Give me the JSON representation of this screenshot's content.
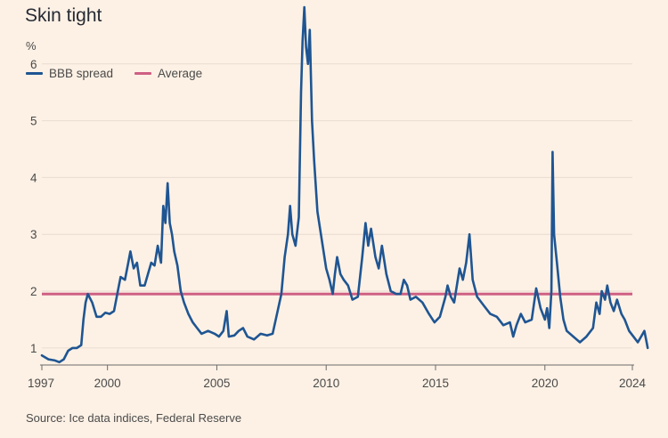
{
  "title": "Skin tight",
  "unit_label": "%",
  "source": "Source: Ice data indices, Federal Reserve",
  "colors": {
    "background": "#fdf1e5",
    "bbb_spread": "#1f5592",
    "average": "#cf5f83",
    "grid": "#e8dcd0"
  },
  "legend": [
    {
      "label": "BBB spread",
      "color": "#1f5592"
    },
    {
      "label": "Average",
      "color": "#cf5f83"
    }
  ],
  "chart_data": {
    "type": "line",
    "title": "Skin tight",
    "ylabel": "%",
    "xlabel": "",
    "ylim": [
      0.7,
      7
    ],
    "xlim": [
      1997,
      2024
    ],
    "yticks": [
      1,
      2,
      3,
      4,
      5,
      6
    ],
    "xticks": [
      1997,
      2000,
      2005,
      2010,
      2015,
      2020,
      2024
    ],
    "grid": true,
    "legend_position": "top-left",
    "average": 1.95,
    "series": [
      {
        "name": "BBB spread",
        "points": [
          [
            1997.0,
            0.87
          ],
          [
            1997.3,
            0.8
          ],
          [
            1997.6,
            0.78
          ],
          [
            1997.8,
            0.75
          ],
          [
            1998.0,
            0.8
          ],
          [
            1998.2,
            0.95
          ],
          [
            1998.4,
            1.0
          ],
          [
            1998.6,
            1.0
          ],
          [
            1998.8,
            1.05
          ],
          [
            1998.9,
            1.5
          ],
          [
            1999.0,
            1.8
          ],
          [
            1999.1,
            1.95
          ],
          [
            1999.3,
            1.8
          ],
          [
            1999.5,
            1.55
          ],
          [
            1999.7,
            1.55
          ],
          [
            1999.9,
            1.62
          ],
          [
            2000.1,
            1.6
          ],
          [
            2000.3,
            1.65
          ],
          [
            2000.5,
            2.05
          ],
          [
            2000.6,
            2.25
          ],
          [
            2000.8,
            2.2
          ],
          [
            2000.95,
            2.5
          ],
          [
            2001.05,
            2.7
          ],
          [
            2001.2,
            2.4
          ],
          [
            2001.35,
            2.5
          ],
          [
            2001.5,
            2.1
          ],
          [
            2001.7,
            2.1
          ],
          [
            2001.85,
            2.3
          ],
          [
            2002.0,
            2.5
          ],
          [
            2002.15,
            2.45
          ],
          [
            2002.3,
            2.8
          ],
          [
            2002.45,
            2.5
          ],
          [
            2002.55,
            3.5
          ],
          [
            2002.65,
            3.2
          ],
          [
            2002.75,
            3.9
          ],
          [
            2002.85,
            3.2
          ],
          [
            2002.95,
            3.0
          ],
          [
            2003.05,
            2.7
          ],
          [
            2003.2,
            2.45
          ],
          [
            2003.35,
            2.0
          ],
          [
            2003.5,
            1.8
          ],
          [
            2003.7,
            1.6
          ],
          [
            2003.9,
            1.45
          ],
          [
            2004.1,
            1.35
          ],
          [
            2004.3,
            1.25
          ],
          [
            2004.6,
            1.3
          ],
          [
            2004.9,
            1.25
          ],
          [
            2005.1,
            1.2
          ],
          [
            2005.3,
            1.3
          ],
          [
            2005.45,
            1.65
          ],
          [
            2005.55,
            1.2
          ],
          [
            2005.8,
            1.22
          ],
          [
            2006.0,
            1.3
          ],
          [
            2006.2,
            1.35
          ],
          [
            2006.4,
            1.2
          ],
          [
            2006.7,
            1.15
          ],
          [
            2007.0,
            1.25
          ],
          [
            2007.3,
            1.22
          ],
          [
            2007.55,
            1.25
          ],
          [
            2007.75,
            1.6
          ],
          [
            2007.95,
            1.95
          ],
          [
            2008.1,
            2.6
          ],
          [
            2008.25,
            3.0
          ],
          [
            2008.35,
            3.5
          ],
          [
            2008.45,
            3.0
          ],
          [
            2008.6,
            2.8
          ],
          [
            2008.75,
            3.3
          ],
          [
            2008.85,
            5.5
          ],
          [
            2008.92,
            6.4
          ],
          [
            2009.0,
            7.0
          ],
          [
            2009.08,
            6.3
          ],
          [
            2009.17,
            6.0
          ],
          [
            2009.25,
            6.6
          ],
          [
            2009.35,
            5.0
          ],
          [
            2009.45,
            4.3
          ],
          [
            2009.6,
            3.4
          ],
          [
            2009.8,
            2.9
          ],
          [
            2010.0,
            2.4
          ],
          [
            2010.15,
            2.2
          ],
          [
            2010.3,
            1.95
          ],
          [
            2010.4,
            2.3
          ],
          [
            2010.5,
            2.6
          ],
          [
            2010.65,
            2.3
          ],
          [
            2010.8,
            2.2
          ],
          [
            2011.0,
            2.1
          ],
          [
            2011.2,
            1.85
          ],
          [
            2011.45,
            1.9
          ],
          [
            2011.65,
            2.6
          ],
          [
            2011.8,
            3.2
          ],
          [
            2011.92,
            2.8
          ],
          [
            2012.05,
            3.1
          ],
          [
            2012.25,
            2.6
          ],
          [
            2012.4,
            2.4
          ],
          [
            2012.55,
            2.8
          ],
          [
            2012.75,
            2.3
          ],
          [
            2012.95,
            2.0
          ],
          [
            2013.2,
            1.95
          ],
          [
            2013.4,
            1.95
          ],
          [
            2013.55,
            2.2
          ],
          [
            2013.7,
            2.1
          ],
          [
            2013.85,
            1.85
          ],
          [
            2014.1,
            1.9
          ],
          [
            2014.4,
            1.8
          ],
          [
            2014.7,
            1.6
          ],
          [
            2014.95,
            1.45
          ],
          [
            2015.2,
            1.55
          ],
          [
            2015.45,
            1.9
          ],
          [
            2015.55,
            2.1
          ],
          [
            2015.7,
            1.9
          ],
          [
            2015.85,
            1.8
          ],
          [
            2016.1,
            2.4
          ],
          [
            2016.25,
            2.2
          ],
          [
            2016.4,
            2.5
          ],
          [
            2016.55,
            3.0
          ],
          [
            2016.7,
            2.2
          ],
          [
            2016.9,
            1.9
          ],
          [
            2017.2,
            1.75
          ],
          [
            2017.5,
            1.6
          ],
          [
            2017.8,
            1.55
          ],
          [
            2018.1,
            1.4
          ],
          [
            2018.4,
            1.45
          ],
          [
            2018.55,
            1.2
          ],
          [
            2018.7,
            1.4
          ],
          [
            2018.9,
            1.6
          ],
          [
            2019.1,
            1.45
          ],
          [
            2019.4,
            1.5
          ],
          [
            2019.6,
            2.05
          ],
          [
            2019.8,
            1.7
          ],
          [
            2020.0,
            1.5
          ],
          [
            2020.1,
            1.7
          ],
          [
            2020.2,
            1.35
          ],
          [
            2020.3,
            2.0
          ],
          [
            2020.35,
            4.45
          ],
          [
            2020.42,
            3.0
          ],
          [
            2020.55,
            2.5
          ],
          [
            2020.7,
            1.9
          ],
          [
            2020.85,
            1.5
          ],
          [
            2021.0,
            1.3
          ],
          [
            2021.3,
            1.2
          ],
          [
            2021.6,
            1.1
          ],
          [
            2021.9,
            1.2
          ],
          [
            2022.2,
            1.35
          ],
          [
            2022.35,
            1.8
          ],
          [
            2022.5,
            1.6
          ],
          [
            2022.6,
            2.0
          ],
          [
            2022.75,
            1.85
          ],
          [
            2022.85,
            2.1
          ],
          [
            2023.0,
            1.8
          ],
          [
            2023.15,
            1.65
          ],
          [
            2023.3,
            1.85
          ],
          [
            2023.5,
            1.6
          ],
          [
            2023.65,
            1.5
          ],
          [
            2023.85,
            1.3
          ],
          [
            2024.05,
            1.2
          ],
          [
            2024.25,
            1.1
          ],
          [
            2024.4,
            1.2
          ],
          [
            2024.55,
            1.3
          ],
          [
            2024.65,
            1.1
          ],
          [
            2024.7,
            1.0
          ]
        ]
      }
    ]
  }
}
